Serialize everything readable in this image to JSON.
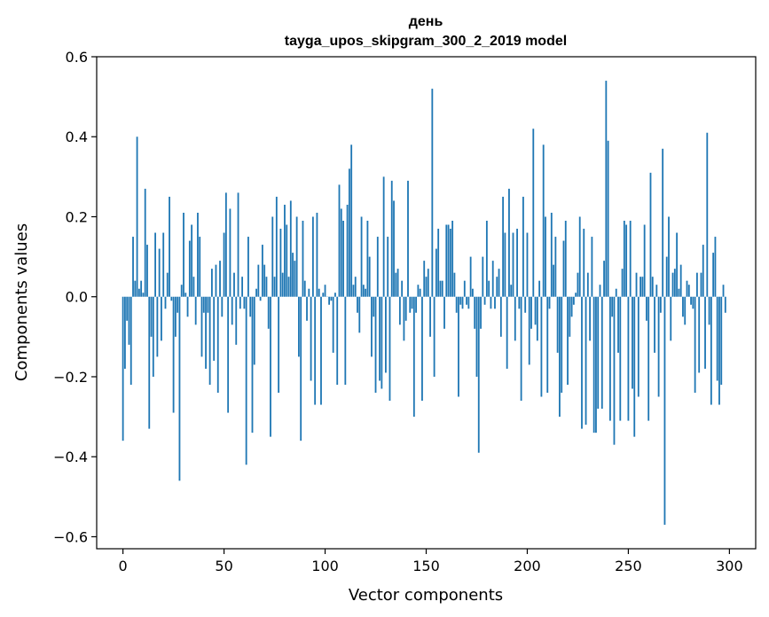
{
  "chart_data": {
    "type": "bar",
    "title": "день",
    "subtitle": "tayga_upos_skipgram_300_2_2019 model",
    "xlabel": "Vector components",
    "ylabel": "Components values",
    "xlim": [
      -13,
      313
    ],
    "ylim": [
      -0.63,
      0.6
    ],
    "xticks": [
      0,
      50,
      100,
      150,
      200,
      250,
      300
    ],
    "yticks": [
      -0.6,
      -0.4,
      -0.2,
      0.0,
      0.2,
      0.4,
      0.6
    ],
    "xtick_labels": [
      "0",
      "50",
      "100",
      "150",
      "200",
      "250",
      "300"
    ],
    "ytick_labels": [
      "−0.6",
      "−0.4",
      "−0.2",
      "0.0",
      "0.2",
      "0.4",
      "0.6"
    ],
    "bar_color": "#1f77b4",
    "grid": false,
    "values": [
      -0.36,
      -0.18,
      -0.06,
      -0.12,
      -0.22,
      0.15,
      0.04,
      0.4,
      0.02,
      0.04,
      0.01,
      0.27,
      0.13,
      -0.33,
      -0.1,
      -0.2,
      0.16,
      -0.15,
      0.12,
      -0.11,
      0.16,
      -0.03,
      0.06,
      0.25,
      -0.01,
      -0.29,
      -0.1,
      -0.04,
      -0.46,
      0.03,
      0.21,
      0.01,
      -0.05,
      0.14,
      0.18,
      0.05,
      -0.07,
      0.21,
      0.15,
      -0.15,
      -0.04,
      -0.18,
      -0.04,
      -0.22,
      0.07,
      -0.16,
      0.08,
      -0.24,
      0.09,
      -0.05,
      0.16,
      0.26,
      -0.29,
      0.22,
      -0.07,
      0.06,
      -0.12,
      0.26,
      -0.03,
      0.05,
      -0.03,
      -0.42,
      0.15,
      -0.05,
      -0.34,
      -0.17,
      0.02,
      0.08,
      -0.01,
      0.13,
      0.08,
      0.05,
      -0.08,
      -0.35,
      0.2,
      0.05,
      0.25,
      -0.24,
      0.17,
      0.06,
      0.23,
      0.18,
      0.05,
      0.24,
      0.11,
      0.09,
      0.2,
      -0.15,
      -0.36,
      0.19,
      0.04,
      -0.06,
      0.02,
      -0.21,
      0.2,
      -0.27,
      0.21,
      0.02,
      -0.27,
      0.01,
      0.03,
      0.0,
      -0.02,
      -0.01,
      -0.14,
      0.01,
      -0.22,
      0.28,
      0.22,
      0.19,
      -0.22,
      0.23,
      0.32,
      0.38,
      0.03,
      0.05,
      -0.04,
      -0.09,
      0.2,
      0.03,
      0.02,
      0.19,
      0.1,
      -0.15,
      -0.05,
      -0.24,
      0.15,
      -0.21,
      -0.23,
      0.3,
      -0.19,
      0.15,
      -0.26,
      0.29,
      0.24,
      0.06,
      0.07,
      -0.07,
      0.04,
      -0.11,
      -0.06,
      0.29,
      -0.04,
      -0.03,
      -0.3,
      -0.04,
      0.03,
      0.02,
      -0.26,
      0.09,
      0.05,
      0.07,
      -0.1,
      0.52,
      -0.2,
      0.12,
      0.17,
      0.04,
      0.04,
      -0.08,
      0.18,
      0.18,
      0.17,
      0.19,
      0.06,
      -0.04,
      -0.25,
      -0.02,
      -0.03,
      0.04,
      -0.02,
      -0.03,
      0.1,
      0.02,
      -0.08,
      -0.2,
      -0.39,
      -0.08,
      0.1,
      -0.02,
      0.19,
      0.04,
      -0.03,
      0.09,
      -0.03,
      0.05,
      0.07,
      -0.1,
      0.25,
      0.16,
      -0.18,
      0.27,
      0.03,
      0.16,
      -0.11,
      0.17,
      -0.03,
      -0.26,
      0.25,
      -0.04,
      0.16,
      -0.17,
      -0.08,
      0.42,
      -0.07,
      -0.11,
      0.04,
      -0.25,
      0.38,
      0.2,
      -0.24,
      -0.03,
      0.21,
      0.08,
      0.15,
      -0.14,
      -0.3,
      -0.24,
      0.14,
      0.19,
      -0.22,
      -0.1,
      -0.05,
      -0.02,
      0.01,
      0.06,
      0.2,
      -0.33,
      0.17,
      -0.32,
      0.06,
      -0.11,
      0.15,
      -0.34,
      -0.34,
      -0.28,
      0.03,
      -0.28,
      0.09,
      0.54,
      0.39,
      -0.31,
      -0.05,
      -0.37,
      0.02,
      -0.14,
      -0.31,
      0.07,
      0.19,
      0.18,
      -0.31,
      0.19,
      -0.23,
      -0.35,
      0.06,
      -0.25,
      0.05,
      0.05,
      0.18,
      -0.06,
      -0.31,
      0.31,
      0.05,
      -0.14,
      0.03,
      -0.25,
      -0.04,
      0.37,
      -0.57,
      0.1,
      0.2,
      -0.11,
      0.06,
      0.07,
      0.16,
      0.02,
      0.08,
      -0.05,
      -0.07,
      0.04,
      0.03,
      -0.02,
      -0.03,
      -0.24,
      0.06,
      -0.19,
      0.06,
      0.13,
      -0.18,
      0.41,
      -0.07,
      -0.27,
      0.11,
      0.15,
      -0.21,
      -0.27,
      -0.22,
      0.03,
      -0.04
    ]
  }
}
